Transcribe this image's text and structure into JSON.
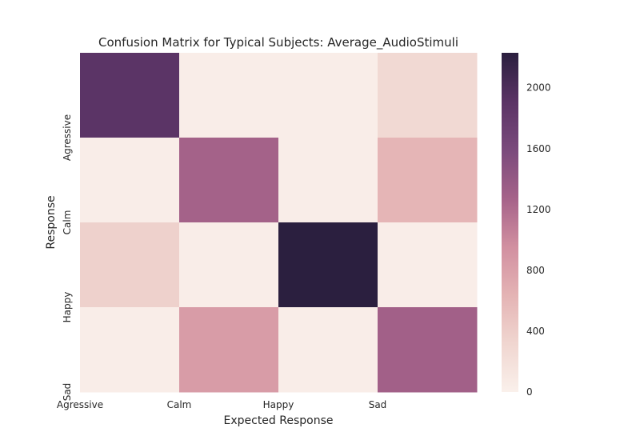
{
  "chart_data": {
    "type": "heatmap",
    "title": "Confusion Matrix for Typical Subjects: Average_AudioStimuli",
    "xlabel": "Expected Response",
    "ylabel": "Response",
    "x_tick_labels": [
      "Agressive",
      "Calm",
      "Happy",
      "Sad"
    ],
    "y_tick_labels": [
      "Agressive",
      "Calm",
      "Happy",
      "Sad"
    ],
    "rows": [
      [
        1900,
        40,
        40,
        280
      ],
      [
        40,
        1280,
        40,
        620
      ],
      [
        360,
        40,
        2230,
        40
      ],
      [
        40,
        840,
        40,
        1300
      ]
    ],
    "colorbar": {
      "min": 0,
      "max": 2230,
      "ticks": [
        0,
        400,
        800,
        1200,
        1600,
        2000
      ],
      "tick_labels": [
        "0",
        "400",
        "800",
        "1200",
        "1600",
        "2000"
      ],
      "colormap": [
        "#faf0eb",
        "#f0d6d0",
        "#e4b3b4",
        "#d18fa0",
        "#a56289",
        "#7a4a7c",
        "#5a3365",
        "#2b1f3f"
      ]
    },
    "grid": false
  }
}
